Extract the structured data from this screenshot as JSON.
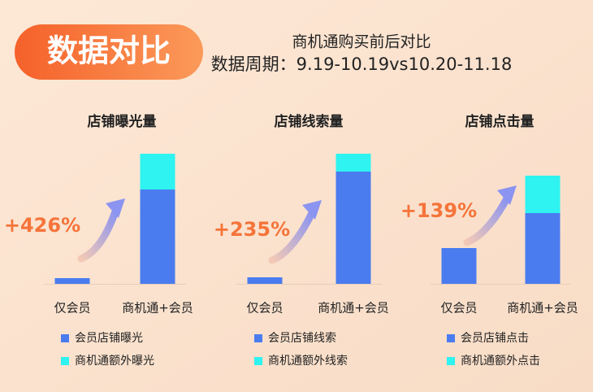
{
  "header": {
    "badge": "数据对比",
    "subtitle": "商机通购买前后对比",
    "period": "数据周期：9.19-10.19vs10.20-11.18"
  },
  "chart_data": [
    {
      "type": "bar",
      "stacked": true,
      "title": "店铺曝光量",
      "categories": [
        "仅会员",
        "商机通+会员"
      ],
      "annotation": "+426%",
      "series": [
        {
          "name": "会员店铺曝光",
          "color": "#4a7cf0",
          "values": [
            7,
            116
          ]
        },
        {
          "name": "商机通额外曝光",
          "color": "#2ef3f0",
          "values": [
            0,
            44
          ]
        }
      ]
    },
    {
      "type": "bar",
      "stacked": true,
      "title": "店铺线索量",
      "categories": [
        "仅会员",
        "商机通+会员"
      ],
      "annotation": "+235%",
      "series": [
        {
          "name": "会员店铺线索",
          "color": "#4a7cf0",
          "values": [
            8,
            138
          ]
        },
        {
          "name": "商机通额外线索",
          "color": "#2ef3f0",
          "values": [
            0,
            22
          ]
        }
      ]
    },
    {
      "type": "bar",
      "stacked": true,
      "title": "店铺点击量",
      "categories": [
        "仅会员",
        "商机通+会员"
      ],
      "annotation": "+139%",
      "series": [
        {
          "name": "会员店铺点击",
          "color": "#4a7cf0",
          "values": [
            44,
            87
          ]
        },
        {
          "name": "商机通额外点击",
          "color": "#2ef3f0",
          "values": [
            0,
            46
          ]
        }
      ]
    }
  ]
}
